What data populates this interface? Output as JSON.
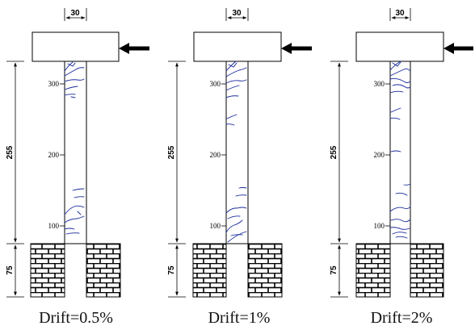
{
  "panels": [
    {
      "caption": "Drift=0.5%",
      "cracks": [
        "M 80 88 Q 85 81 90 77",
        "M 80 94 Q 87 90 94 86 Q 99 83 104 84",
        "M 84 79 L 90 82 L 93 78",
        "M 80 101 Q 88 98 96 99 Q 101 100 104 98",
        "M 80 111 Q 88 108 96 107",
        "M 80 118 Q 87 116 93 117",
        "M 88 120 L 93 121",
        "M 90 236 Q 97 234 104 234",
        "M 92 245 Q 98 243 104 244",
        "M 80 266 Q 86 258 92 256 Q 98 254 104 257",
        "M 80 276 Q 87 271 95 271 Q 100 270 104 268",
        "M 80 284 Q 86 282 92 284",
        "M 82 290 Q 90 288 98 289",
        "M 96 262 L 100 266"
      ]
    },
    {
      "caption": "Drift=1%",
      "cracks": [
        "M 280 88 Q 286 81 292 76",
        "M 280 95 Q 288 90 296 87 Q 301 86 305 84",
        "M 283 80 L 289 83 L 293 78",
        "M 280 103 Q 288 99 296 100 Q 301 101 305 99",
        "M 280 112 Q 288 108 296 106",
        "M 280 121 Q 287 118 295 119",
        "M 281 147 Q 287 144 293 142",
        "M 280 154 Q 285 153 290 155",
        "M 296 233 Q 300 232 305 233",
        "M 292 243 Q 298 241 305 242",
        "M 280 264 Q 287 257 294 258 Q 300 256 305 258",
        "M 282 271 Q 290 267 297 268",
        "M 280 288 Q 284 281 290 279 Q 296 277 300 273",
        "M 286 292 Q 293 290 300 291",
        "M 282 300 Q 294 290 305 287"
      ]
    },
    {
      "caption": "Drift=2%",
      "cracks": [
        "M 483 87 Q 489 80 496 76",
        "M 483 94 Q 491 90 500 86 Q 504 84 508 88",
        "M 486 78 L 492 82 L 496 77",
        "M 483 98 Q 492 96 500 101 Q 504 104 508 101",
        "M 486 106 Q 494 103 502 108 Q 505 110 508 108",
        "M 483 115 Q 491 112 499 114",
        "M 484 139 Q 490 136 496 134",
        "M 483 147 Q 489 145 495 148",
        "M 484 188 Q 490 186 496 188",
        "M 500 229 Q 504 230 508 228",
        "M 490 240 Q 497 238 504 242",
        "M 483 262 Q 492 255 500 258 Q 505 260 508 256",
        "M 484 273 Q 492 270 499 274 Q 504 276 508 272",
        "M 483 282 Q 490 281 497 284 Q 502 285 507 283",
        "M 486 290 Q 494 286 503 289",
        "M 490 294 Q 497 292 504 295"
      ]
    }
  ],
  "dimensions": {
    "top_width": "30",
    "column_height": "255",
    "base_height": "75"
  },
  "ticks": [
    "300",
    "200",
    "100"
  ],
  "colors": {
    "crack": "#1a2a9a",
    "line": "#000000"
  }
}
